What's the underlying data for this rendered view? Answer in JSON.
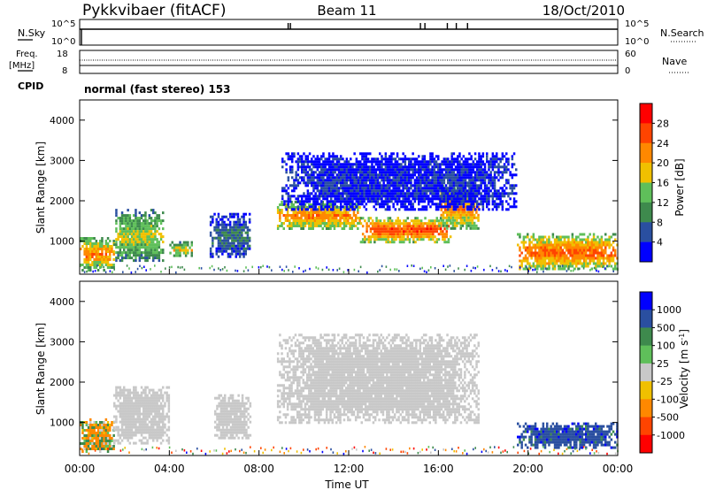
{
  "header": {
    "station": "Pykkvibaer (fitACF)",
    "beam": "Beam 11",
    "date": "18/Oct/2010"
  },
  "nsky_panel": {
    "left_label": "N.Sky",
    "right_label": "N.Search",
    "left_ticks": [
      "10^5",
      "10^0"
    ],
    "right_ticks": [
      "10^5",
      "10^0"
    ]
  },
  "freq_panel": {
    "left_label_1": "Freq.",
    "left_label_2": "[MHz]",
    "right_label": "Nave",
    "left_ticks": [
      "18",
      "8"
    ],
    "right_ticks": [
      "60",
      "0"
    ]
  },
  "cpid": {
    "label": "CPID",
    "value": "normal (fast stereo) 153"
  },
  "x_axis": {
    "ticks": [
      "00:00",
      "04:00",
      "08:00",
      "12:00",
      "16:00",
      "20:00",
      "00:00"
    ],
    "label": "Time UT"
  },
  "colors": {
    "power_scale": [
      "#0000ff",
      "#2a4fa0",
      "#3e8a4d",
      "#5fbf5a",
      "#f0c000",
      "#ff8800",
      "#ff4400",
      "#ff0000"
    ],
    "velocity_scale": [
      "#ff0000",
      "#ff4400",
      "#ff8800",
      "#f0c000",
      "#c8c8c8",
      "#5fbf5a",
      "#3e8a4d",
      "#2a4fa0",
      "#0000ff"
    ],
    "groundscatter": "#c8c8c8"
  },
  "chart_data": [
    {
      "type": "heatmap",
      "name": "power",
      "ylabel": "Slant Range [km]",
      "xlabel": "Time UT",
      "x_ticks": [
        "00:00",
        "04:00",
        "08:00",
        "12:00",
        "16:00",
        "20:00",
        "00:00"
      ],
      "y_ticks": [
        "1000",
        "2000",
        "3000",
        "4000"
      ],
      "ylim": [
        180,
        4500
      ],
      "xlim_hours": [
        0,
        24
      ],
      "colorbar": {
        "label": "Power [dB]",
        "ticks": [
          "4",
          "8",
          "12",
          "16",
          "20",
          "24",
          "28"
        ],
        "range": [
          0,
          32
        ]
      },
      "regions": [
        {
          "t0": 0.0,
          "t1": 1.5,
          "r0": 300,
          "r1": 1100,
          "level": 24
        },
        {
          "t0": 1.5,
          "t1": 3.7,
          "r0": 500,
          "r1": 1800,
          "level": 18
        },
        {
          "t0": 4.0,
          "t1": 5.0,
          "r0": 650,
          "r1": 1000,
          "level": 20
        },
        {
          "t0": 5.8,
          "t1": 7.6,
          "r0": 600,
          "r1": 1700,
          "level": 10
        },
        {
          "t0": 8.8,
          "t1": 12.5,
          "r0": 1300,
          "r1": 2000,
          "level": 24
        },
        {
          "t0": 12.5,
          "t1": 16.5,
          "r0": 1000,
          "r1": 1600,
          "level": 28
        },
        {
          "t0": 16.0,
          "t1": 17.8,
          "r0": 1300,
          "r1": 2400,
          "level": 24
        },
        {
          "t0": 9.0,
          "t1": 19.5,
          "r0": 1800,
          "r1": 3200,
          "level": 6
        },
        {
          "t0": 19.5,
          "t1": 24.0,
          "r0": 300,
          "r1": 1200,
          "level": 26
        }
      ]
    },
    {
      "type": "heatmap",
      "name": "velocity",
      "ylabel": "Slant Range [km]",
      "xlabel": "Time UT",
      "x_ticks": [
        "00:00",
        "04:00",
        "08:00",
        "12:00",
        "16:00",
        "20:00",
        "00:00"
      ],
      "y_ticks": [
        "1000",
        "2000",
        "3000",
        "4000"
      ],
      "ylim": [
        180,
        4500
      ],
      "xlim_hours": [
        0,
        24
      ],
      "colorbar": {
        "label": "Velocity [m s^-1]",
        "ticks": [
          "1000",
          "500",
          "100",
          "25",
          "-25",
          "-100",
          "-500",
          "-1000"
        ]
      },
      "regions": [
        {
          "t0": 0.0,
          "t1": 1.5,
          "r0": 300,
          "r1": 1100,
          "velocity": -50
        },
        {
          "t0": 1.5,
          "t1": 4.0,
          "r0": 500,
          "r1": 1900,
          "velocity": 0
        },
        {
          "t0": 6.0,
          "t1": 7.6,
          "r0": 600,
          "r1": 1700,
          "velocity": 0
        },
        {
          "t0": 8.8,
          "t1": 17.8,
          "r0": 1000,
          "r1": 3200,
          "velocity": 0
        },
        {
          "t0": 19.5,
          "t1": 24.0,
          "r0": 400,
          "r1": 1000,
          "velocity": 500
        }
      ]
    }
  ]
}
